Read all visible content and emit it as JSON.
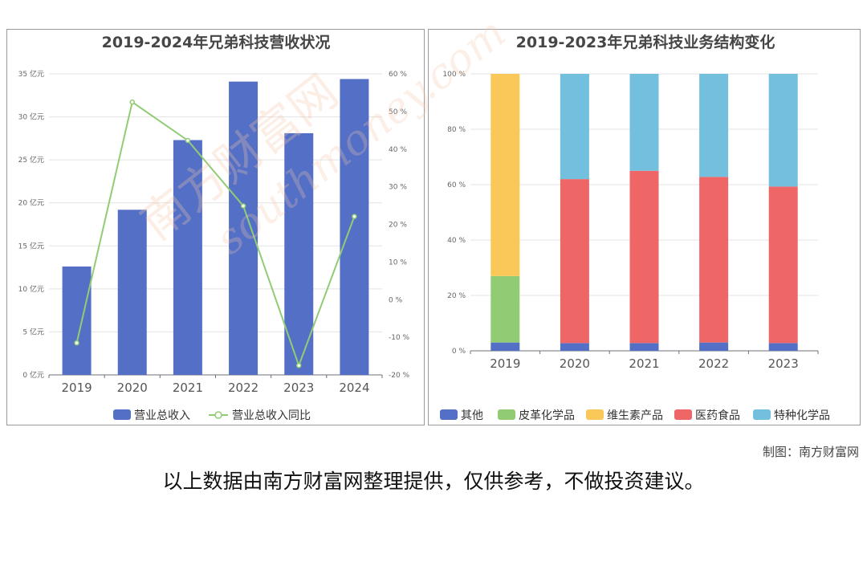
{
  "watermark": {
    "site_cn": "南方财富网",
    "site_en": "southmoney.com"
  },
  "credit": {
    "label": "制图：南方财富网"
  },
  "footnote": "以上数据由南方财富网整理提供，仅供参考，不做投资建议。",
  "chart_data": [
    {
      "type": "bar+line",
      "title": "2019-2024年兄弟科技营收状况",
      "categories": [
        "2019",
        "2020",
        "2021",
        "2022",
        "2023",
        "2024"
      ],
      "series": [
        {
          "name": "营业总收入",
          "type": "bar",
          "axis": "left",
          "unit": "亿元",
          "values": [
            12.6,
            19.2,
            27.3,
            34.1,
            28.1,
            34.4
          ],
          "color": "#5470c6"
        },
        {
          "name": "营业总收入同比",
          "type": "line",
          "axis": "right",
          "unit": "%",
          "values": [
            -11.5,
            52.5,
            42.3,
            24.9,
            -17.5,
            22.1
          ],
          "color": "#91cc75"
        }
      ],
      "y_left": {
        "min": 0,
        "max": 35,
        "step": 5,
        "suffix": " 亿元"
      },
      "y_right": {
        "min": -20,
        "max": 60,
        "step": 10,
        "suffix": " %"
      },
      "grid": true,
      "legend": "bottom"
    },
    {
      "type": "stacked-bar",
      "title": "2019-2023年兄弟科技业务结构变化",
      "categories": [
        "2019",
        "2020",
        "2021",
        "2022",
        "2023"
      ],
      "series": [
        {
          "name": "其他",
          "values": [
            3.0,
            2.8,
            2.8,
            3.0,
            2.8
          ],
          "color": "#5470c6"
        },
        {
          "name": "皮革化学品",
          "values": [
            24.0,
            0,
            0,
            0,
            0
          ],
          "color": "#91cc75"
        },
        {
          "name": "维生素产品",
          "values": [
            73.0,
            0,
            0,
            0,
            0
          ],
          "color": "#fac858"
        },
        {
          "name": "医药食品",
          "values": [
            0,
            59.2,
            62.2,
            59.8,
            56.5
          ],
          "color": "#ee6666"
        },
        {
          "name": "特种化学品",
          "values": [
            0,
            38.0,
            35.0,
            37.2,
            40.7
          ],
          "color": "#73c0de"
        }
      ],
      "y": {
        "min": 0,
        "max": 100,
        "step": 20,
        "suffix": " %"
      },
      "grid": true,
      "legend": "bottom"
    }
  ]
}
